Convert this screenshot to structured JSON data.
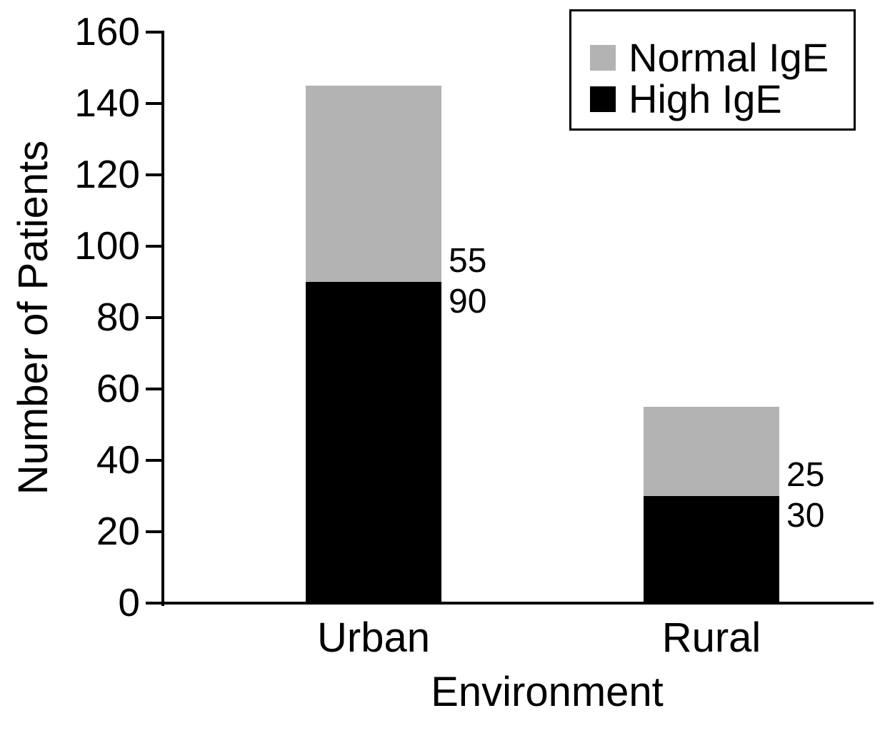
{
  "chart_data": {
    "type": "bar",
    "stacked": true,
    "title": "",
    "xlabel": "Environment",
    "ylabel": "Number of Patients",
    "categories": [
      "Urban",
      "Rural"
    ],
    "series": [
      {
        "name": "High IgE",
        "color": "#000000",
        "values": [
          90,
          30
        ]
      },
      {
        "name": "Normal IgE",
        "color": "#b3b3b3",
        "values": [
          55,
          25
        ]
      }
    ],
    "totals": [
      145,
      55
    ],
    "segment_value_labels": [
      {
        "category": "Urban",
        "normal_ige": "55",
        "high_ige": "90"
      },
      {
        "category": "Rural",
        "normal_ige": "25",
        "high_ige": "30"
      }
    ],
    "ylim": [
      0,
      160
    ],
    "yticks": [
      0,
      20,
      40,
      60,
      80,
      100,
      120,
      140,
      160
    ],
    "grid": false,
    "background_color": "#ffffff",
    "axis_color": "#000000",
    "legend": {
      "position": "top-right",
      "entries": [
        {
          "label": "Normal IgE",
          "color": "#b3b3b3"
        },
        {
          "label": "High IgE",
          "color": "#000000"
        }
      ]
    }
  }
}
